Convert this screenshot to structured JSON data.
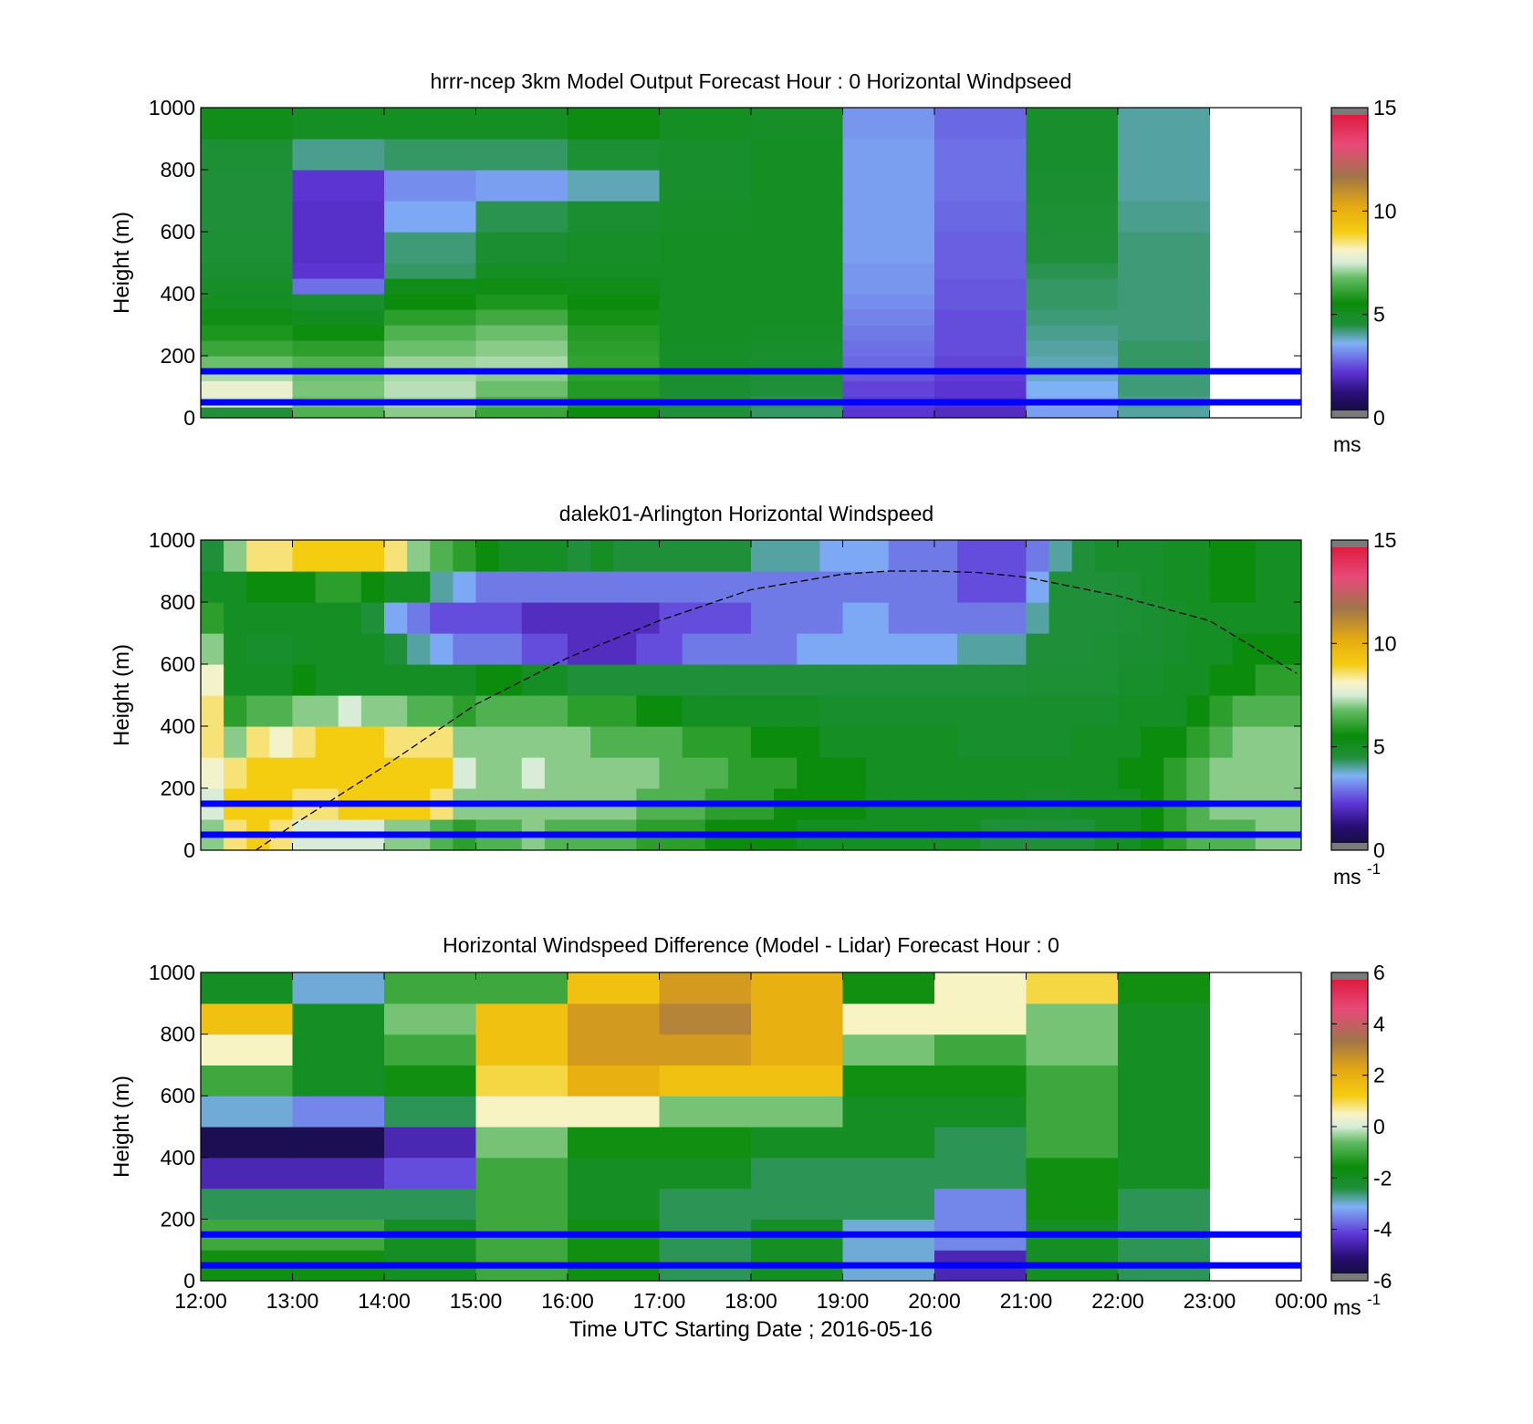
{
  "figure": {
    "xlabel": "Time UTC  Starting Date ; 2016-05-16",
    "x_tick_labels": [
      "12:00",
      "13:00",
      "14:00",
      "15:00",
      "16:00",
      "17:00",
      "18:00",
      "19:00",
      "20:00",
      "21:00",
      "22:00",
      "23:00",
      "00:00"
    ]
  },
  "chart_data": [
    {
      "type": "heatmap",
      "title": "hrrr-ncep 3km Model Output   Forecast Hour : 0 Horizontal Windpseed",
      "ylabel": "Height (m)",
      "ylim": [
        0,
        1000
      ],
      "yticks": [
        0,
        200,
        400,
        600,
        800,
        1000
      ],
      "x": [
        "12:00",
        "13:00",
        "14:00",
        "15:00",
        "16:00",
        "17:00",
        "18:00",
        "19:00",
        "20:00",
        "21:00",
        "22:00"
      ],
      "y_levels": [
        0,
        35,
        70,
        120,
        160,
        200,
        250,
        300,
        350,
        400,
        450,
        500,
        600,
        700,
        800,
        900
      ],
      "values": [
        [
          4.5,
          6.5,
          7.0,
          6.2,
          5.5,
          4.5,
          4.3,
          2.2,
          2.0,
          3.4,
          4.0
        ],
        [
          7.5,
          6.8,
          7.2,
          6.5,
          5.8,
          4.6,
          4.4,
          2.3,
          2.1,
          3.5,
          4.1
        ],
        [
          7.8,
          6.9,
          7.3,
          6.8,
          5.9,
          4.7,
          4.5,
          2.4,
          2.2,
          3.6,
          4.2
        ],
        [
          7.2,
          6.8,
          7.2,
          7.0,
          6.0,
          4.8,
          4.6,
          2.6,
          2.3,
          3.8,
          4.2
        ],
        [
          6.8,
          6.5,
          7.1,
          7.2,
          6.1,
          4.9,
          4.7,
          2.8,
          2.4,
          3.9,
          4.3
        ],
        [
          6.2,
          6.0,
          6.8,
          7.0,
          6.0,
          4.9,
          4.8,
          2.9,
          2.5,
          4.0,
          4.3
        ],
        [
          5.8,
          5.6,
          6.5,
          6.8,
          5.9,
          5.0,
          4.9,
          3.0,
          2.5,
          4.1,
          4.2
        ],
        [
          5.3,
          5.1,
          6.0,
          6.3,
          5.7,
          5.0,
          5.0,
          3.1,
          2.5,
          4.2,
          4.2
        ],
        [
          5.0,
          4.8,
          5.5,
          5.8,
          5.5,
          5.0,
          5.0,
          3.2,
          2.6,
          4.3,
          4.2
        ],
        [
          4.9,
          2.9,
          5.2,
          5.3,
          5.2,
          5.0,
          5.0,
          3.3,
          2.6,
          4.3,
          4.2
        ],
        [
          4.7,
          2.2,
          4.3,
          5.0,
          5.0,
          5.0,
          5.0,
          3.3,
          2.7,
          4.4,
          4.2
        ],
        [
          4.6,
          2.1,
          4.2,
          4.7,
          4.9,
          5.0,
          5.0,
          3.4,
          2.7,
          4.5,
          4.2
        ],
        [
          4.5,
          2.1,
          3.5,
          4.4,
          4.7,
          4.9,
          5.0,
          3.4,
          2.8,
          4.6,
          4.1
        ],
        [
          4.5,
          2.2,
          3.2,
          3.4,
          3.9,
          4.8,
          5.0,
          3.4,
          2.9,
          4.7,
          4.0
        ],
        [
          4.6,
          4.1,
          4.3,
          4.3,
          4.6,
          4.8,
          5.0,
          3.4,
          2.9,
          4.8,
          4.0
        ],
        [
          5.2,
          5.0,
          5.0,
          5.0,
          5.4,
          5.0,
          4.9,
          3.3,
          2.8,
          4.8,
          4.0
        ]
      ],
      "colorbar": {
        "range": [
          0,
          15
        ],
        "ticks": [
          0,
          5,
          10,
          15
        ],
        "unit": "ms"
      },
      "reference_lines_height_m": [
        50,
        150
      ],
      "reference_line_color": "#0000ff"
    },
    {
      "type": "heatmap",
      "title": "dalek01-Arlington  Horizontal Windspeed",
      "ylabel": "Height (m)",
      "ylim": [
        0,
        1000
      ],
      "yticks": [
        0,
        200,
        400,
        600,
        800,
        1000
      ],
      "x_hours": [
        12.0,
        12.25,
        12.5,
        12.75,
        13.0,
        13.25,
        13.5,
        13.75,
        14.0,
        14.25,
        14.5,
        14.75,
        15.0,
        15.25,
        15.5,
        15.75,
        16.0,
        16.25,
        16.5,
        16.75,
        17.0,
        17.25,
        17.5,
        17.75,
        18.0,
        18.25,
        18.5,
        18.75,
        19.0,
        19.25,
        19.5,
        19.75,
        20.0,
        20.25,
        20.5,
        20.75,
        21.0,
        21.25,
        21.5,
        21.75,
        22.0,
        22.25,
        22.5,
        22.75,
        23.0,
        23.25,
        23.5,
        23.75
      ],
      "y_levels": [
        0,
        100,
        200,
        300,
        400,
        500,
        600,
        700,
        800,
        900
      ],
      "values": [
        [
          7.0,
          7.5,
          8.0,
          8.5,
          8.5,
          8.0,
          7.0,
          6.0,
          5.0,
          4.5
        ],
        [
          8.5,
          9.0,
          8.5,
          7.0,
          6.0,
          5.0,
          5.0,
          5.0,
          5.0,
          7.0
        ],
        [
          9.0,
          9.0,
          9.0,
          8.5,
          6.5,
          5.0,
          4.8,
          5.0,
          5.5,
          8.5
        ],
        [
          8.5,
          9.0,
          9.0,
          8.0,
          6.5,
          5.0,
          4.8,
          5.0,
          5.5,
          8.5
        ],
        [
          7.5,
          8.5,
          9.0,
          8.5,
          7.0,
          5.5,
          5.0,
          5.0,
          5.5,
          9.0
        ],
        [
          7.5,
          8.5,
          9.0,
          9.0,
          7.0,
          5.0,
          5.0,
          5.0,
          6.0,
          9.0
        ],
        [
          7.5,
          9.0,
          9.0,
          9.0,
          7.5,
          5.0,
          5.0,
          5.0,
          6.0,
          9.0
        ],
        [
          7.5,
          9.0,
          9.0,
          9.0,
          7.0,
          5.0,
          5.0,
          4.5,
          5.5,
          9.0
        ],
        [
          7.0,
          9.0,
          9.0,
          8.5,
          7.0,
          5.0,
          4.5,
          3.5,
          5.0,
          8.5
        ],
        [
          7.0,
          9.0,
          9.0,
          8.5,
          6.5,
          5.0,
          4.0,
          3.0,
          5.0,
          7.0
        ],
        [
          6.5,
          8.5,
          9.0,
          8.5,
          6.5,
          5.0,
          3.5,
          2.5,
          4.0,
          6.5
        ],
        [
          6.0,
          7.0,
          7.5,
          7.0,
          6.0,
          5.0,
          3.0,
          2.5,
          3.5,
          6.0
        ],
        [
          6.5,
          7.0,
          7.0,
          7.0,
          6.5,
          5.5,
          3.0,
          2.5,
          3.0,
          5.5
        ],
        [
          6.5,
          7.0,
          7.0,
          7.0,
          6.5,
          5.5,
          3.0,
          2.5,
          3.0,
          5.0
        ],
        [
          7.0,
          7.0,
          7.5,
          7.0,
          6.5,
          5.0,
          2.5,
          2.0,
          3.0,
          5.0
        ],
        [
          6.5,
          7.0,
          7.0,
          7.0,
          6.5,
          5.0,
          2.5,
          2.0,
          3.0,
          5.0
        ],
        [
          6.5,
          7.0,
          7.0,
          7.0,
          6.0,
          4.5,
          2.0,
          2.0,
          3.0,
          4.5
        ],
        [
          6.5,
          7.0,
          7.0,
          6.5,
          6.0,
          4.5,
          2.0,
          2.0,
          3.0,
          5.0
        ],
        [
          6.5,
          7.0,
          7.0,
          6.5,
          6.0,
          4.5,
          2.0,
          2.0,
          3.0,
          4.5
        ],
        [
          6.0,
          6.5,
          7.0,
          6.5,
          5.5,
          4.5,
          2.5,
          2.0,
          3.0,
          4.5
        ],
        [
          6.0,
          6.5,
          6.5,
          6.5,
          5.5,
          4.5,
          2.5,
          2.5,
          3.0,
          4.5
        ],
        [
          6.0,
          6.5,
          6.5,
          6.0,
          5.0,
          4.5,
          3.0,
          2.5,
          3.0,
          4.5
        ],
        [
          5.5,
          6.0,
          6.5,
          6.0,
          5.0,
          4.5,
          3.0,
          2.5,
          3.0,
          4.5
        ],
        [
          5.5,
          6.0,
          6.0,
          6.0,
          5.0,
          4.5,
          3.0,
          2.5,
          3.0,
          4.5
        ],
        [
          5.5,
          6.0,
          6.0,
          5.5,
          5.0,
          4.5,
          3.0,
          3.0,
          3.0,
          4.0
        ],
        [
          5.5,
          5.5,
          6.0,
          5.5,
          5.0,
          4.5,
          3.0,
          3.0,
          3.0,
          4.0
        ],
        [
          5.0,
          5.5,
          5.5,
          5.5,
          5.0,
          4.5,
          3.5,
          3.0,
          3.0,
          4.0
        ],
        [
          5.0,
          5.5,
          5.5,
          5.0,
          4.8,
          4.5,
          3.5,
          3.0,
          3.0,
          3.5
        ],
        [
          5.0,
          5.5,
          5.5,
          5.0,
          4.8,
          4.5,
          3.5,
          3.5,
          3.0,
          3.5
        ],
        [
          5.0,
          5.0,
          5.0,
          5.0,
          4.8,
          4.5,
          3.5,
          3.5,
          3.0,
          3.5
        ],
        [
          5.0,
          5.0,
          5.0,
          5.0,
          4.8,
          4.5,
          3.5,
          3.0,
          3.0,
          3.0
        ],
        [
          5.0,
          5.0,
          5.0,
          5.0,
          4.8,
          4.5,
          3.5,
          3.0,
          3.0,
          3.0
        ],
        [
          5.0,
          5.0,
          5.0,
          5.0,
          4.8,
          4.5,
          3.5,
          3.0,
          3.0,
          3.0
        ],
        [
          5.0,
          5.0,
          5.0,
          4.8,
          4.8,
          4.5,
          4.0,
          3.0,
          2.5,
          2.5
        ],
        [
          4.5,
          5.0,
          5.0,
          4.8,
          4.8,
          4.5,
          4.0,
          3.0,
          2.5,
          2.5
        ],
        [
          4.5,
          5.0,
          5.0,
          4.8,
          4.8,
          4.5,
          4.0,
          3.0,
          2.5,
          2.5
        ],
        [
          4.5,
          4.8,
          5.0,
          4.8,
          4.8,
          4.6,
          4.5,
          4.0,
          3.5,
          3.0
        ],
        [
          4.5,
          4.8,
          5.0,
          4.8,
          4.8,
          4.6,
          4.5,
          4.5,
          4.5,
          4.0
        ],
        [
          4.5,
          5.0,
          5.0,
          5.0,
          4.8,
          4.6,
          4.5,
          4.5,
          4.5,
          4.5
        ],
        [
          5.0,
          5.0,
          5.0,
          5.0,
          4.8,
          4.6,
          4.6,
          4.5,
          4.5,
          4.8
        ],
        [
          5.0,
          5.0,
          5.5,
          5.0,
          5.0,
          4.8,
          4.7,
          4.6,
          4.6,
          4.8
        ],
        [
          5.5,
          5.5,
          5.5,
          5.5,
          5.0,
          4.8,
          4.7,
          4.7,
          4.8,
          4.8
        ],
        [
          6.0,
          6.0,
          6.0,
          5.5,
          5.0,
          5.0,
          4.8,
          4.8,
          5.0,
          5.0
        ],
        [
          6.5,
          6.5,
          6.5,
          6.0,
          5.5,
          5.0,
          5.0,
          5.0,
          5.0,
          5.0
        ],
        [
          6.5,
          7.0,
          7.0,
          6.5,
          6.0,
          5.5,
          5.0,
          5.0,
          5.5,
          5.5
        ],
        [
          6.5,
          7.0,
          7.0,
          7.0,
          6.5,
          5.5,
          5.5,
          5.0,
          5.5,
          5.5
        ],
        [
          7.0,
          7.0,
          7.0,
          7.0,
          6.5,
          6.0,
          5.5,
          5.0,
          5.0,
          5.0
        ],
        [
          7.0,
          7.0,
          7.0,
          7.0,
          6.5,
          6.0,
          5.5,
          5.0,
          5.0,
          5.0
        ]
      ],
      "boundary_layer_curve": {
        "x_hours": [
          12.6,
          13.0,
          14.0,
          15.0,
          16.0,
          17.0,
          18.0,
          19.0,
          19.5,
          20.0,
          20.5,
          21.0,
          22.0,
          23.0,
          23.95
        ],
        "height_m": [
          0,
          80,
          270,
          470,
          620,
          740,
          840,
          890,
          900,
          900,
          895,
          880,
          820,
          740,
          570
        ]
      },
      "colorbar": {
        "range": [
          0,
          15
        ],
        "ticks": [
          0,
          5,
          10,
          15
        ],
        "unit": "ms",
        "unit_superscript": "-1"
      },
      "reference_lines_height_m": [
        50,
        150
      ],
      "reference_line_color": "#0000ff"
    },
    {
      "type": "heatmap",
      "title": "Horizontal Windspeed Difference (Model - Lidar) Forecast Hour : 0",
      "ylabel": "Height (m)",
      "ylim": [
        0,
        1000
      ],
      "yticks": [
        0,
        200,
        400,
        600,
        800,
        1000
      ],
      "x": [
        "12:00",
        "13:00",
        "14:00",
        "15:00",
        "16:00",
        "17:00",
        "18:00",
        "19:00",
        "20:00",
        "21:00",
        "22:00"
      ],
      "y_levels": [
        0,
        100,
        200,
        300,
        400,
        500,
        600,
        700,
        800,
        900
      ],
      "values": [
        [
          -1.5,
          -1.5,
          -2.0,
          -1.0,
          -1.5,
          -2.5,
          -2.0,
          -3.0,
          -4.5,
          -2.0,
          -2.5
        ],
        [
          -1.0,
          -1.0,
          -2.0,
          -1.0,
          -1.5,
          -2.5,
          -2.0,
          -3.0,
          -3.5,
          -2.0,
          -2.5
        ],
        [
          -2.5,
          -2.5,
          -2.5,
          -1.0,
          -2.0,
          -2.5,
          -2.5,
          -2.5,
          -3.5,
          -1.5,
          -2.5
        ],
        [
          -4.5,
          -4.5,
          -4.0,
          -1.0,
          -2.0,
          -2.0,
          -2.5,
          -2.5,
          -2.5,
          -1.5,
          -2.0
        ],
        [
          -5.5,
          -5.5,
          -4.5,
          -0.5,
          -1.5,
          -1.5,
          -2.0,
          -2.0,
          -2.5,
          -1.0,
          -2.0
        ],
        [
          -3.0,
          -3.5,
          -2.5,
          0.5,
          0.5,
          -0.5,
          -0.5,
          -2.0,
          -2.0,
          -1.0,
          -2.0
        ],
        [
          -1.0,
          -2.0,
          -1.5,
          1.0,
          2.0,
          1.5,
          1.5,
          -1.5,
          -1.5,
          -1.0,
          -2.0
        ],
        [
          0.5,
          -2.0,
          -1.0,
          1.5,
          2.5,
          2.5,
          2.0,
          -0.5,
          -1.0,
          -0.5,
          -2.0
        ],
        [
          1.5,
          -2.0,
          -0.5,
          1.5,
          2.5,
          3.0,
          2.0,
          0.5,
          0.5,
          -0.5,
          -2.0
        ],
        [
          -2.0,
          -3.0,
          -1.0,
          -1.0,
          1.5,
          2.5,
          2.0,
          -1.5,
          0.5,
          1.0,
          -1.5
        ]
      ],
      "colorbar": {
        "range": [
          -6,
          6
        ],
        "ticks": [
          -6,
          -4,
          -2,
          0,
          2,
          4,
          6
        ],
        "unit": "ms",
        "unit_superscript": "-1"
      },
      "reference_lines_height_m": [
        50,
        150
      ],
      "reference_line_color": "#0000ff"
    }
  ]
}
